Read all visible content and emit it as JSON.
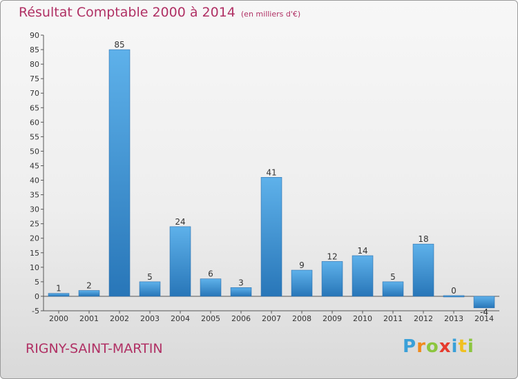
{
  "title": "Résultat Comptable 2000 à 2014",
  "subtitle": "(en milliers d'€)",
  "place": "RIGNY-SAINT-MARTIN",
  "logo": {
    "letters": [
      "P",
      "r",
      "o",
      "x",
      "i",
      "t",
      "i"
    ],
    "colors": [
      "#3aa0d8",
      "#f08a1c",
      "#8cc63f",
      "#e63b2e",
      "#3aa0d8",
      "#f0c020",
      "#8cc63f"
    ]
  },
  "colors": {
    "bar_light": "#5eb1ea",
    "bar_dark": "#2876b8",
    "title": "#b03064"
  },
  "chart_data": {
    "type": "bar",
    "categories": [
      "2000",
      "2001",
      "2002",
      "2003",
      "2004",
      "2005",
      "2006",
      "2007",
      "2008",
      "2009",
      "2010",
      "2011",
      "2012",
      "2013",
      "2014"
    ],
    "values": [
      1,
      2,
      85,
      5,
      24,
      6,
      3,
      41,
      9,
      12,
      14,
      5,
      18,
      0,
      -4
    ],
    "value_labels": [
      "1",
      "2",
      "85",
      "5",
      "24",
      "6",
      "3",
      "41",
      "9",
      "12",
      "14",
      "5",
      "18",
      "0",
      "-4"
    ],
    "ylim": [
      -5,
      90
    ],
    "yticks": [
      -5,
      0,
      5,
      10,
      15,
      20,
      25,
      30,
      35,
      40,
      45,
      50,
      55,
      60,
      65,
      70,
      75,
      80,
      85,
      90
    ],
    "grid": false
  }
}
